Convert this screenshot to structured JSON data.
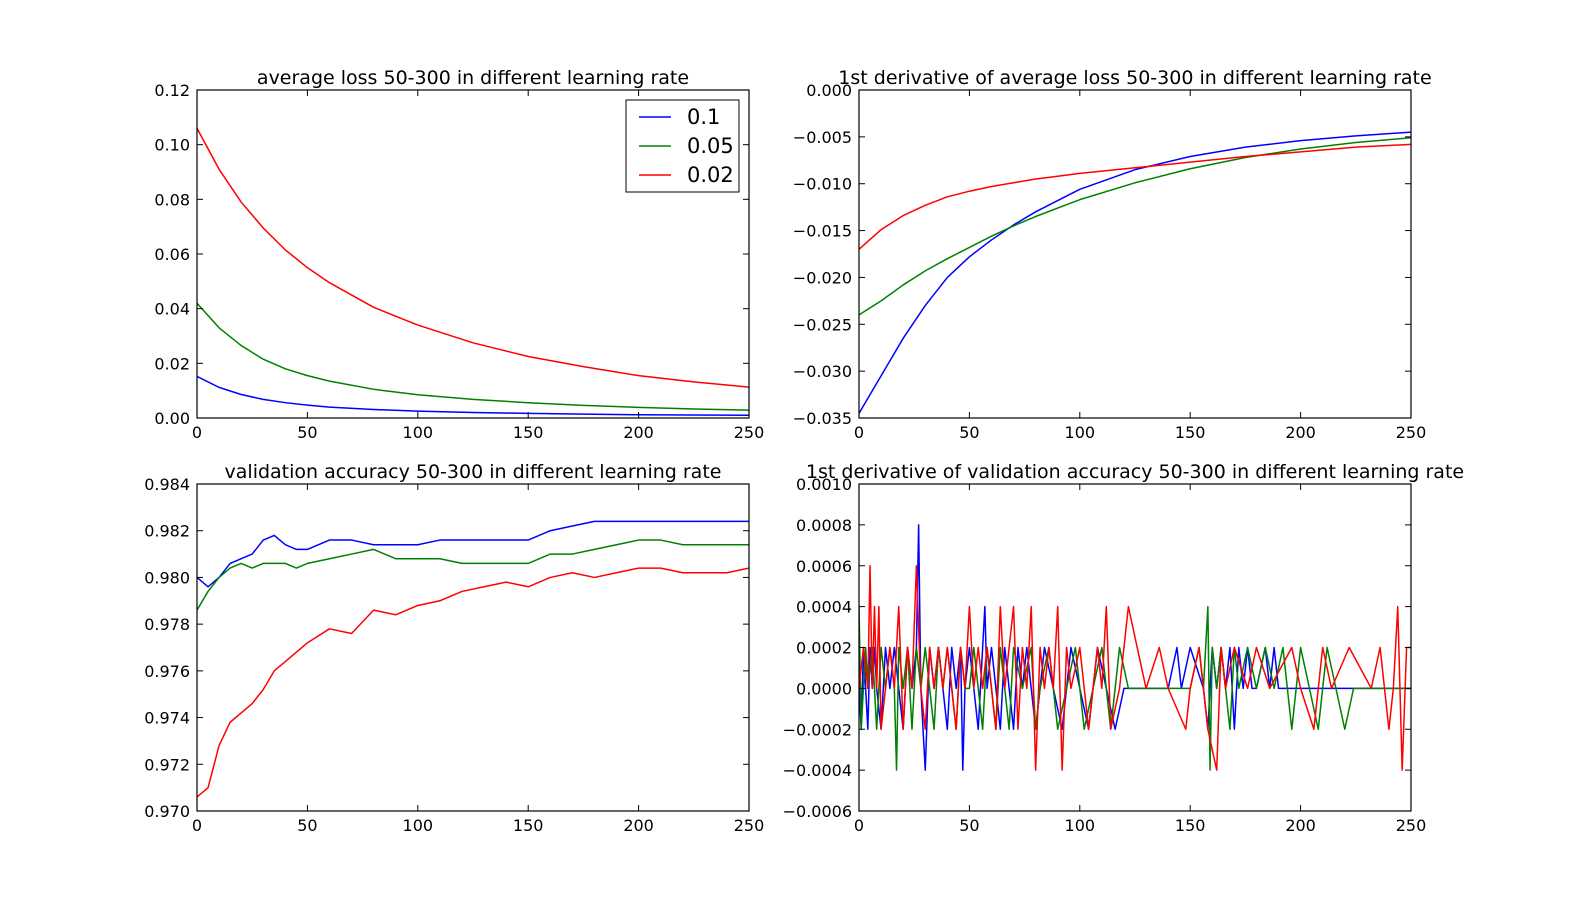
{
  "figure": {
    "colors": {
      "blue": "#0000ff",
      "green": "#008000",
      "red": "#ff0000",
      "axes": "#000000",
      "background": "#ffffff"
    }
  },
  "chart_data": [
    {
      "type": "line",
      "title": "average loss 50-300 in different learning rate",
      "xlabel": "",
      "ylabel": "",
      "xlim": [
        0,
        250
      ],
      "ylim": [
        0.0,
        0.12
      ],
      "xticks": [
        0,
        50,
        100,
        150,
        200,
        250
      ],
      "xtick_labels": [
        "0",
        "50",
        "100",
        "150",
        "200",
        "250"
      ],
      "yticks": [
        0.0,
        0.02,
        0.04,
        0.06,
        0.08,
        0.1,
        0.12
      ],
      "ytick_labels": [
        "0.00",
        "0.02",
        "0.04",
        "0.06",
        "0.08",
        "0.10",
        "0.12"
      ],
      "legend": {
        "position": "upper right"
      },
      "x": [
        0,
        10,
        20,
        30,
        40,
        50,
        60,
        80,
        100,
        125,
        150,
        175,
        200,
        225,
        250
      ],
      "series": [
        {
          "name": "0.1",
          "color": "#0000ff",
          "values": [
            0.0152,
            0.0112,
            0.0086,
            0.0068,
            0.0056,
            0.0047,
            0.004,
            0.0031,
            0.0025,
            0.002,
            0.0017,
            0.0014,
            0.0012,
            0.0011,
            0.001
          ]
        },
        {
          "name": "0.05",
          "color": "#008000",
          "values": [
            0.042,
            0.033,
            0.0265,
            0.0215,
            0.018,
            0.0155,
            0.0135,
            0.0105,
            0.0085,
            0.0068,
            0.0056,
            0.0046,
            0.0039,
            0.0033,
            0.0029
          ]
        },
        {
          "name": "0.02",
          "color": "#ff0000",
          "values": [
            0.106,
            0.091,
            0.079,
            0.0695,
            0.0615,
            0.055,
            0.0495,
            0.0405,
            0.034,
            0.0275,
            0.0225,
            0.0188,
            0.0155,
            0.0132,
            0.0113
          ]
        }
      ]
    },
    {
      "type": "line",
      "title": "1st derivative of average loss 50-300 in different learning rate",
      "xlabel": "",
      "ylabel": "",
      "xlim": [
        0,
        250
      ],
      "ylim": [
        -0.035,
        0.0
      ],
      "xticks": [
        0,
        50,
        100,
        150,
        200,
        250
      ],
      "xtick_labels": [
        "0",
        "50",
        "100",
        "150",
        "200",
        "250"
      ],
      "yticks": [
        -0.035,
        -0.03,
        -0.025,
        -0.02,
        -0.015,
        -0.01,
        -0.005,
        0.0
      ],
      "ytick_labels": [
        "−0.035",
        "−0.030",
        "−0.025",
        "−0.020",
        "−0.015",
        "−0.010",
        "−0.005",
        "0.000"
      ],
      "x": [
        0,
        10,
        20,
        30,
        40,
        50,
        60,
        70,
        80,
        90,
        100,
        125,
        150,
        175,
        200,
        225,
        250
      ],
      "series": [
        {
          "name": "0.1",
          "color": "#0000ff",
          "values": [
            -0.0345,
            -0.0305,
            -0.0265,
            -0.023,
            -0.02,
            -0.0178,
            -0.016,
            -0.0144,
            -0.013,
            -0.0118,
            -0.0106,
            -0.0085,
            -0.0071,
            -0.0061,
            -0.0054,
            -0.0049,
            -0.0045
          ]
        },
        {
          "name": "0.05",
          "color": "#008000",
          "values": [
            -0.024,
            -0.0225,
            -0.0208,
            -0.0193,
            -0.018,
            -0.0168,
            -0.0156,
            -0.0145,
            -0.0135,
            -0.0126,
            -0.0117,
            -0.0099,
            -0.0084,
            -0.0072,
            -0.0063,
            -0.0056,
            -0.0051
          ]
        },
        {
          "name": "0.02",
          "color": "#ff0000",
          "values": [
            -0.017,
            -0.0149,
            -0.0134,
            -0.0123,
            -0.0114,
            -0.0108,
            -0.0103,
            -0.0099,
            -0.0095,
            -0.0092,
            -0.0089,
            -0.0083,
            -0.0077,
            -0.0071,
            -0.0066,
            -0.0061,
            -0.0058
          ]
        }
      ]
    },
    {
      "type": "line",
      "title": "validation accuracy 50-300 in different learning rate",
      "xlabel": "",
      "ylabel": "",
      "xlim": [
        0,
        250
      ],
      "ylim": [
        0.97,
        0.984
      ],
      "xticks": [
        0,
        50,
        100,
        150,
        200,
        250
      ],
      "xtick_labels": [
        "0",
        "50",
        "100",
        "150",
        "200",
        "250"
      ],
      "yticks": [
        0.97,
        0.972,
        0.974,
        0.976,
        0.978,
        0.98,
        0.982,
        0.984
      ],
      "ytick_labels": [
        "0.970",
        "0.972",
        "0.974",
        "0.976",
        "0.978",
        "0.980",
        "0.982",
        "0.984"
      ],
      "x": [
        0,
        5,
        10,
        15,
        20,
        25,
        30,
        35,
        40,
        45,
        50,
        60,
        70,
        80,
        90,
        100,
        110,
        120,
        130,
        140,
        150,
        160,
        170,
        180,
        190,
        200,
        210,
        220,
        230,
        240,
        250
      ],
      "series": [
        {
          "name": "0.1",
          "color": "#0000ff",
          "values": [
            0.98,
            0.9796,
            0.98,
            0.9806,
            0.9808,
            0.981,
            0.9816,
            0.9818,
            0.9814,
            0.9812,
            0.9812,
            0.9816,
            0.9816,
            0.9814,
            0.9814,
            0.9814,
            0.9816,
            0.9816,
            0.9816,
            0.9816,
            0.9816,
            0.982,
            0.9822,
            0.9824,
            0.9824,
            0.9824,
            0.9824,
            0.9824,
            0.9824,
            0.9824,
            0.9824
          ]
        },
        {
          "name": "0.05",
          "color": "#008000",
          "values": [
            0.9786,
            0.9794,
            0.98,
            0.9804,
            0.9806,
            0.9804,
            0.9806,
            0.9806,
            0.9806,
            0.9804,
            0.9806,
            0.9808,
            0.981,
            0.9812,
            0.9808,
            0.9808,
            0.9808,
            0.9806,
            0.9806,
            0.9806,
            0.9806,
            0.981,
            0.981,
            0.9812,
            0.9814,
            0.9816,
            0.9816,
            0.9814,
            0.9814,
            0.9814,
            0.9814
          ]
        },
        {
          "name": "0.02",
          "color": "#ff0000",
          "values": [
            0.9706,
            0.971,
            0.9728,
            0.9738,
            0.9742,
            0.9746,
            0.9752,
            0.976,
            0.9764,
            0.9768,
            0.9772,
            0.9778,
            0.9776,
            0.9786,
            0.9784,
            0.9788,
            0.979,
            0.9794,
            0.9796,
            0.9798,
            0.9796,
            0.98,
            0.9802,
            0.98,
            0.9802,
            0.9804,
            0.9804,
            0.9802,
            0.9802,
            0.9802,
            0.9804
          ]
        }
      ]
    },
    {
      "type": "line",
      "title": "1st derivative of validation accuracy 50-300 in different learning rate",
      "xlabel": "",
      "ylabel": "",
      "xlim": [
        0,
        250
      ],
      "ylim": [
        -0.0006,
        0.001
      ],
      "xticks": [
        0,
        50,
        100,
        150,
        200,
        250
      ],
      "xtick_labels": [
        "0",
        "50",
        "100",
        "150",
        "200",
        "250"
      ],
      "yticks": [
        -0.0006,
        -0.0004,
        -0.0002,
        0.0,
        0.0002,
        0.0004,
        0.0006,
        0.0008,
        0.001
      ],
      "ytick_labels": [
        "−0.0006",
        "−0.0004",
        "−0.0002",
        "0.0000",
        "0.0002",
        "0.0004",
        "0.0006",
        "0.0008",
        "0.0010"
      ],
      "series": [
        {
          "name": "0.1",
          "color": "#0000ff",
          "x": [
            0,
            1,
            2,
            3,
            4,
            5,
            6,
            7,
            8,
            10,
            12,
            14,
            16,
            18,
            20,
            22,
            24,
            26,
            27,
            28,
            30,
            32,
            34,
            36,
            38,
            40,
            42,
            44,
            46,
            47,
            48,
            50,
            52,
            54,
            56,
            57,
            58,
            60,
            62,
            64,
            66,
            68,
            70,
            72,
            74,
            76,
            78,
            80,
            84,
            88,
            92,
            96,
            100,
            104,
            108,
            112,
            116,
            120,
            140,
            144,
            146,
            150,
            156,
            158,
            160,
            162,
            164,
            166,
            168,
            170,
            172,
            174,
            176,
            178,
            180,
            184,
            186,
            188,
            190,
            250
          ],
          "values": [
            0,
            -0.0002,
            0.0002,
            0,
            -0.0002,
            0.0002,
            0,
            0.0002,
            0,
            -0.0002,
            0.0002,
            0,
            0.0002,
            0,
            -0.0002,
            0.0002,
            0,
            0.0002,
            0.0008,
            0,
            -0.0004,
            0.0002,
            0,
            0.0002,
            0,
            -0.0002,
            0.0002,
            0,
            0.0002,
            -0.0004,
            0,
            0.0002,
            0,
            -0.0002,
            0.0002,
            0.0004,
            0,
            0.0002,
            0,
            -0.0002,
            0.0002,
            0,
            -0.0002,
            0.0002,
            0,
            0.0002,
            0,
            -0.0002,
            0.0002,
            0,
            -0.0002,
            0.0002,
            0,
            -0.0002,
            0.0002,
            0,
            -0.0002,
            0,
            0,
            0.0002,
            0,
            0.0002,
            0,
            -0.0002,
            0.0002,
            0,
            0.0002,
            0,
            0.0002,
            -0.0002,
            0.0002,
            0,
            0.0002,
            0,
            0,
            0.0002,
            0,
            0.0002,
            0,
            0
          ]
        },
        {
          "name": "0.05",
          "color": "#008000",
          "x": [
            0,
            1,
            2,
            3,
            4,
            6,
            8,
            10,
            12,
            14,
            16,
            17,
            18,
            20,
            22,
            24,
            26,
            28,
            30,
            32,
            34,
            36,
            38,
            40,
            42,
            44,
            46,
            48,
            50,
            52,
            54,
            56,
            58,
            60,
            62,
            64,
            66,
            68,
            70,
            74,
            78,
            80,
            82,
            86,
            90,
            94,
            98,
            102,
            106,
            110,
            114,
            118,
            122,
            150,
            154,
            156,
            158,
            159,
            160,
            162,
            164,
            166,
            168,
            170,
            172,
            176,
            180,
            184,
            188,
            192,
            196,
            200,
            204,
            208,
            212,
            216,
            220,
            224,
            250
          ],
          "values": [
            0.0004,
            -0.0002,
            0,
            0.0002,
            0,
            0.0002,
            -0.0002,
            0.0002,
            0,
            0.0002,
            0,
            -0.0004,
            0.0002,
            0,
            0.0002,
            -0.0002,
            0.0002,
            0,
            0.0002,
            0,
            -0.0002,
            0.0002,
            0,
            0.0002,
            0,
            -0.0002,
            0.0002,
            0,
            0,
            0.0002,
            0,
            -0.0002,
            0.0002,
            0,
            -0.0002,
            0.0002,
            0,
            -0.0002,
            0.0002,
            0,
            0.0002,
            -0.0002,
            0,
            0.0002,
            -0.0002,
            0,
            0.0002,
            -0.0002,
            0,
            0.0002,
            -0.0002,
            0.0002,
            0,
            0,
            0.0002,
            0,
            0.0004,
            -0.0004,
            0.0002,
            0,
            0.0002,
            0,
            -0.0002,
            0.0002,
            0,
            0.0002,
            0,
            0.0002,
            0,
            0.0002,
            -0.0002,
            0.0002,
            0,
            -0.0002,
            0.0002,
            0,
            -0.0002,
            0,
            0
          ]
        },
        {
          "name": "0.02",
          "color": "#ff0000",
          "x": [
            0,
            2,
            4,
            5,
            6,
            7,
            8,
            9,
            10,
            12,
            14,
            16,
            18,
            20,
            22,
            24,
            26,
            28,
            30,
            32,
            34,
            36,
            38,
            40,
            42,
            44,
            46,
            48,
            50,
            52,
            54,
            56,
            58,
            60,
            62,
            64,
            66,
            68,
            70,
            72,
            74,
            76,
            78,
            80,
            82,
            84,
            86,
            88,
            90,
            92,
            94,
            96,
            100,
            104,
            108,
            110,
            112,
            114,
            118,
            122,
            130,
            136,
            140,
            148,
            150,
            154,
            158,
            162,
            164,
            166,
            170,
            176,
            180,
            186,
            196,
            200,
            206,
            210,
            214,
            222,
            232,
            236,
            238,
            240,
            242,
            244,
            246,
            248,
            250
          ],
          "values": [
            0,
            0.0002,
            0,
            0.0006,
            0,
            0.0004,
            0,
            0.0004,
            -0.0002,
            0,
            0.0002,
            0,
            0.0004,
            -0.0002,
            0.0002,
            0,
            0.0006,
            0,
            -0.0002,
            0.0002,
            0,
            0.0002,
            0,
            0.0002,
            0,
            -0.0002,
            0.0002,
            0,
            0.0004,
            0,
            0.0002,
            0,
            0.0002,
            0,
            -0.0002,
            0.0004,
            0,
            0.0002,
            0.0004,
            -0.0002,
            0.0002,
            0,
            0.0004,
            -0.0004,
            0.0002,
            0,
            0.0002,
            0,
            0.0004,
            -0.0004,
            0.0002,
            0,
            0.0002,
            -0.0002,
            0.0002,
            0,
            0.0004,
            -0.0002,
            0,
            0.0004,
            0,
            0.0002,
            0,
            -0.0002,
            0,
            0.0002,
            -0.0002,
            -0.0004,
            0.0002,
            0,
            0.0002,
            0,
            0.0002,
            0,
            0.0002,
            0,
            -0.0002,
            0.0002,
            0,
            0.0002,
            0,
            0.0002,
            0,
            -0.0002,
            0,
            0.0004,
            -0.0004,
            0.0002,
            0.0002
          ]
        }
      ]
    }
  ]
}
